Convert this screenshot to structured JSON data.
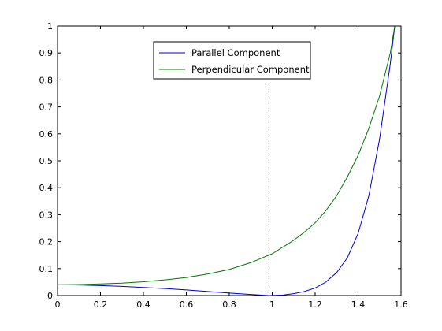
{
  "chart_data": {
    "type": "line",
    "title": "",
    "xlabel": "",
    "ylabel": "",
    "xlim": [
      0,
      1.6
    ],
    "ylim": [
      0,
      1
    ],
    "xticks": [
      "0",
      "0.2",
      "0.4",
      "0.6",
      "0.8",
      "1",
      "1.2",
      "1.4",
      "1.6"
    ],
    "yticks": [
      "0",
      "0.1",
      "0.2",
      "0.3",
      "0.4",
      "0.5",
      "0.6",
      "0.7",
      "0.8",
      "0.9",
      "1"
    ],
    "grid": false,
    "legend_position": "top-center",
    "reference_line": {
      "x": 0.985,
      "y_from": 0,
      "y_to": 0.79,
      "style": "dotted",
      "color": "#000000"
    },
    "series": [
      {
        "name": "Parallel Component",
        "color": "#0000cc",
        "x": [
          0,
          0.1,
          0.2,
          0.3,
          0.4,
          0.5,
          0.6,
          0.7,
          0.8,
          0.9,
          0.985,
          1.05,
          1.1,
          1.15,
          1.2,
          1.25,
          1.3,
          1.35,
          1.4,
          1.45,
          1.5,
          1.55,
          1.5708
        ],
        "y": [
          0.04,
          0.039,
          0.037,
          0.034,
          0.03,
          0.026,
          0.021,
          0.015,
          0.009,
          0.004,
          0.0,
          0.002,
          0.007,
          0.015,
          0.028,
          0.05,
          0.085,
          0.14,
          0.23,
          0.37,
          0.58,
          0.86,
          1.0
        ]
      },
      {
        "name": "Perpendicular Component",
        "color": "#007700",
        "x": [
          0,
          0.1,
          0.2,
          0.3,
          0.4,
          0.5,
          0.6,
          0.7,
          0.8,
          0.9,
          1.0,
          1.05,
          1.1,
          1.15,
          1.2,
          1.25,
          1.3,
          1.35,
          1.4,
          1.45,
          1.5,
          1.55,
          1.5708
        ],
        "y": [
          0.04,
          0.041,
          0.043,
          0.046,
          0.051,
          0.058,
          0.067,
          0.08,
          0.097,
          0.122,
          0.155,
          0.18,
          0.205,
          0.235,
          0.27,
          0.315,
          0.37,
          0.44,
          0.52,
          0.62,
          0.74,
          0.9,
          1.0
        ]
      }
    ]
  }
}
